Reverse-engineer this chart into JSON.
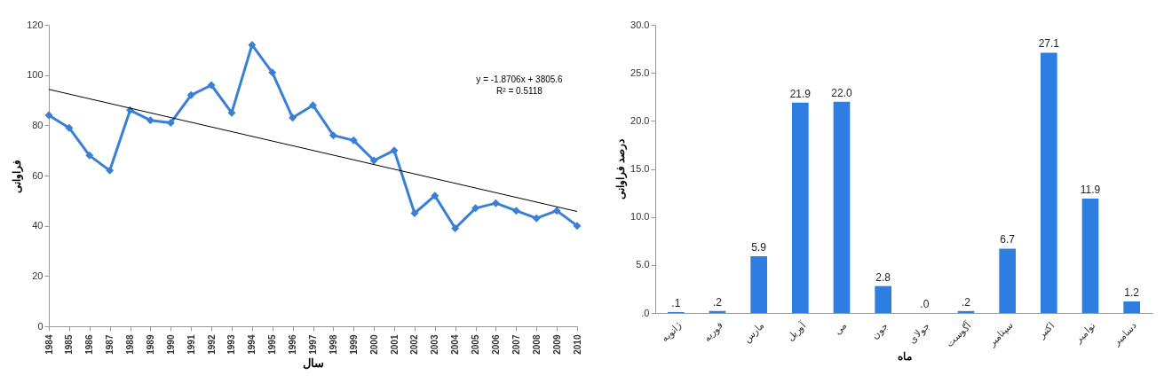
{
  "chart_data": [
    {
      "type": "line",
      "xlabel": "سال",
      "ylabel": "فراوانی",
      "x": [
        1984,
        1985,
        1986,
        1987,
        1988,
        1989,
        1990,
        1991,
        1992,
        1993,
        1994,
        1995,
        1996,
        1997,
        1998,
        1999,
        2000,
        2001,
        2002,
        2003,
        2004,
        2005,
        2006,
        2007,
        2008,
        2009,
        2010
      ],
      "series": [
        {
          "color": "#3a7fd6",
          "values": [
            84,
            79,
            68,
            62,
            86,
            82,
            81,
            92,
            96,
            85,
            112,
            101,
            83,
            88,
            76,
            74,
            66,
            70,
            45,
            52,
            39,
            47,
            49,
            46,
            43,
            46,
            40
          ]
        },
        {
          "color": "#000000",
          "x": [
            1984,
            2010
          ],
          "values": [
            94.3,
            45.7
          ],
          "marker": "none"
        }
      ],
      "marker": "diamond",
      "xlim": [
        1984,
        2010
      ],
      "xticks": [
        1984,
        1985,
        1986,
        1987,
        1988,
        1989,
        1990,
        1991,
        1992,
        1993,
        1994,
        1995,
        1996,
        1997,
        1998,
        1999,
        2000,
        2001,
        2002,
        2003,
        2004,
        2005,
        2006,
        2007,
        2008,
        2009,
        2010
      ],
      "ylim": [
        0,
        120
      ],
      "yticks": [
        0,
        20,
        40,
        60,
        80,
        100,
        120
      ],
      "grid": false,
      "annotations": [
        "y = -1.8706x + 3805.6",
        "R² = 0.5118"
      ]
    },
    {
      "type": "bar",
      "xlabel": "ماه",
      "ylabel": "درصد فراوانی",
      "categories": [
        "ژانویه",
        "فوریه",
        "مارس",
        "آوریل",
        "می",
        "جون",
        "جولای",
        "آگوست",
        "سپتامبر",
        "اکتبر",
        "نوامبر",
        "دسامبر"
      ],
      "values": [
        0.1,
        0.2,
        5.9,
        21.9,
        22.0,
        2.8,
        0.0,
        0.2,
        6.7,
        27.1,
        11.9,
        1.2
      ],
      "value_labels": [
        ".1",
        ".2",
        "5.9",
        "21.9",
        "22.0",
        "2.8",
        ".0",
        ".2",
        "6.7",
        "27.1",
        "11.9",
        "1.2"
      ],
      "color": "#2e7de1",
      "ylim": [
        0,
        30
      ],
      "yticks": [
        {
          "value": 0,
          "label": ".0"
        },
        {
          "value": 5,
          "label": "5.0"
        },
        {
          "value": 10,
          "label": "10.0"
        },
        {
          "value": 15,
          "label": "15.0"
        },
        {
          "value": 20,
          "label": "20.0"
        },
        {
          "value": 25,
          "label": "25.0"
        },
        {
          "value": 30,
          "label": "30.0"
        }
      ],
      "grid": false
    }
  ]
}
